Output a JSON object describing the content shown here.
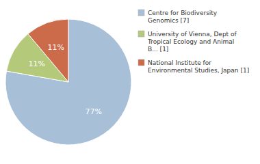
{
  "chart_data": {
    "type": "pie",
    "categories": [
      "Centre for Biodiversity\nGenomics [7]",
      "University of Vienna, Dept of\nTropical Ecology and Animal\nB... [1]",
      "National Institute for\nEnvironmental Studies, Japan [1]"
    ],
    "values": [
      77,
      11,
      11
    ],
    "value_labels": [
      "77%",
      "11%",
      "11%"
    ],
    "colors": [
      "#a8bfd8",
      "#b5c97a",
      "#cc6b4a"
    ],
    "data_labels": true,
    "legend": "right"
  }
}
